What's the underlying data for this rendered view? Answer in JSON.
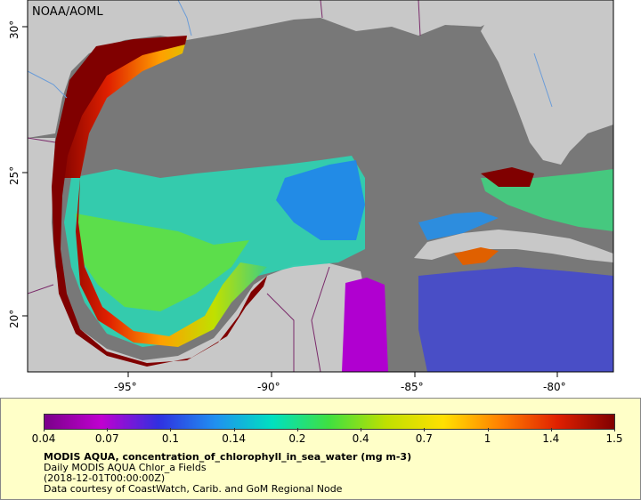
{
  "map": {
    "attribution": "NOAA/AOML",
    "lon_labels": [
      "-95°",
      "-90°",
      "-85°",
      "-80°"
    ],
    "lat_labels": [
      "30°",
      "25°",
      "20°"
    ],
    "colors": {
      "land": "#c8c8c8",
      "no_data_ocean": "#787878",
      "coast_lines": "#7a2a6a",
      "river_lines": "#6a9cd8"
    }
  },
  "legend": {
    "colorbar_ticks": [
      "0.04",
      "0.07",
      "0.1",
      "0.14",
      "0.2",
      "0.4",
      "0.7",
      "1",
      "1.4",
      "1.5"
    ],
    "colorbar_stops": [
      "#7a008a",
      "#c000d0",
      "#3030e0",
      "#2090f0",
      "#00e0c0",
      "#40e040",
      "#c0e000",
      "#ffe000",
      "#ff8000",
      "#e02000",
      "#800000"
    ],
    "title": "MODIS AQUA, concentration_of_chlorophyll_in_sea_water (mg m-3)",
    "line1": "Daily MODIS AQUA Chlor_a Fields",
    "line2": "(2018-12-01T00:00:00Z)",
    "line3": "Data courtesy of CoastWatch, Carib. and GoM Regional Node"
  }
}
